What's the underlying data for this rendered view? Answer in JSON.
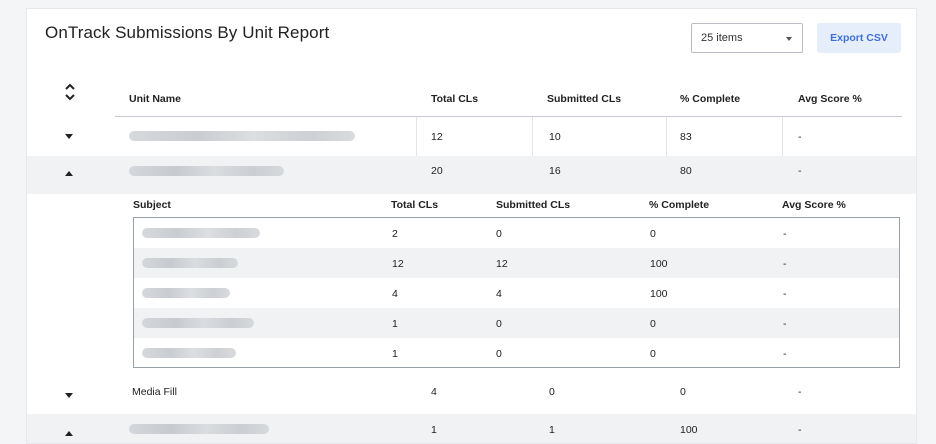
{
  "report": {
    "title": "OnTrack Submissions By Unit Report",
    "items_select": "25 items",
    "export_label": "Export CSV"
  },
  "columns": [
    "Unit Name",
    "Total CLs",
    "Submitted CLs",
    "% Complete",
    "Avg Score %"
  ],
  "units": [
    {
      "name": "",
      "name_redacted": true,
      "total": "12",
      "submitted": "10",
      "complete": "83",
      "avg": "-",
      "expanded": false
    },
    {
      "name": "",
      "name_redacted": true,
      "total": "20",
      "submitted": "16",
      "complete": "80",
      "avg": "-",
      "expanded": true
    },
    {
      "name": "Media Fill",
      "name_redacted": false,
      "total": "4",
      "submitted": "0",
      "complete": "0",
      "avg": "-",
      "expanded": false
    },
    {
      "name": "",
      "name_redacted": true,
      "total": "1",
      "submitted": "1",
      "complete": "100",
      "avg": "-",
      "expanded": true
    }
  ],
  "subjects": {
    "columns": [
      "Subject",
      "Total CLs",
      "Submitted CLs",
      "% Complete",
      "Avg Score %"
    ],
    "rows": [
      {
        "subject": "",
        "redacted": true,
        "total": "2",
        "submitted": "0",
        "complete": "0",
        "avg": "-"
      },
      {
        "subject": "",
        "redacted": true,
        "total": "12",
        "submitted": "12",
        "complete": "100",
        "avg": "-"
      },
      {
        "subject": "",
        "redacted": true,
        "total": "4",
        "submitted": "4",
        "complete": "100",
        "avg": "-"
      },
      {
        "subject": "",
        "redacted": true,
        "total": "1",
        "submitted": "0",
        "complete": "0",
        "avg": "-"
      },
      {
        "subject": "",
        "redacted": true,
        "total": "1",
        "submitted": "0",
        "complete": "0",
        "avg": "-"
      }
    ]
  }
}
